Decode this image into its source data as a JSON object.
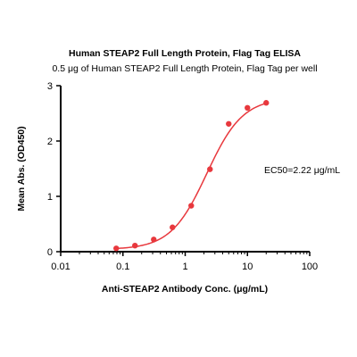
{
  "chart_data": {
    "type": "scatter",
    "title": "Human STEAP2 Full Length Protein, Flag Tag ELISA",
    "subtitle": "0.5 μg of Human STEAP2 Full Length Protein, Flag Tag per well",
    "xlabel": "Anti-STEAP2 Antibody Conc. (μg/mL)",
    "ylabel": "Mean Abs. (OD450)",
    "xscale": "log",
    "xlim": [
      0.01,
      100
    ],
    "ylim": [
      0,
      3
    ],
    "x_ticks": [
      "0.01",
      "0.1",
      "1",
      "10",
      "100"
    ],
    "y_ticks": [
      "0",
      "1",
      "2",
      "3"
    ],
    "grid": false,
    "annotation": "EC50=2.22 μg/mL",
    "colors": {
      "series": "#e8383d",
      "axis": "#000000"
    },
    "series": [
      {
        "x": [
          0.078,
          0.156,
          0.3125,
          0.625,
          1.25,
          2.5,
          5,
          10,
          20
        ],
        "y": [
          0.06,
          0.11,
          0.22,
          0.44,
          0.83,
          1.49,
          2.31,
          2.6,
          2.69
        ]
      }
    ],
    "fit_curve": {
      "type": "4PL",
      "bottom": 0.04,
      "top": 2.78,
      "ec50": 2.22,
      "hill": 1.5
    }
  }
}
